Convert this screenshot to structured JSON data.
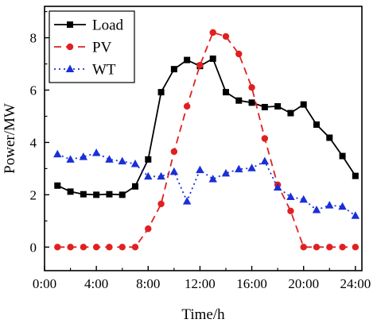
{
  "chart_data": {
    "type": "line",
    "title": "",
    "xlabel": "Time/h",
    "ylabel": "Power/MW",
    "xlim": [
      0,
      24.5
    ],
    "ylim": [
      -0.9,
      9.2
    ],
    "x_ticks": [
      0,
      4,
      8,
      12,
      16,
      20,
      24
    ],
    "x_tick_labels": [
      "0:00",
      "4:00",
      "8:00",
      "12:00",
      "16:00",
      "20:00",
      "24:00"
    ],
    "y_ticks": [
      0,
      2,
      4,
      6,
      8
    ],
    "y_tick_labels": [
      "0",
      "2",
      "4",
      "6",
      "8"
    ],
    "grid": false,
    "legend_position": "top-left",
    "x": [
      1,
      2,
      3,
      4,
      5,
      6,
      7,
      8,
      9,
      10,
      11,
      12,
      13,
      14,
      15,
      16,
      17,
      18,
      19,
      20,
      21,
      22,
      23,
      24
    ],
    "series": [
      {
        "name": "Load",
        "color": "#000000",
        "line_style": "solid",
        "marker": "square",
        "values": [
          2.35,
          2.12,
          2.02,
          2.0,
          2.02,
          2.0,
          2.32,
          3.35,
          5.92,
          6.8,
          7.15,
          6.92,
          7.2,
          5.92,
          5.6,
          5.52,
          5.35,
          5.38,
          5.12,
          5.45,
          4.68,
          4.18,
          3.48,
          2.72
        ]
      },
      {
        "name": "PV",
        "color": "#e02020",
        "line_style": "dashed",
        "marker": "circle",
        "values": [
          0,
          0,
          0,
          0,
          0,
          0,
          0,
          0.7,
          1.65,
          3.65,
          5.38,
          6.95,
          8.2,
          8.05,
          7.38,
          6.1,
          4.15,
          2.38,
          1.38,
          0,
          0,
          0,
          0,
          0
        ]
      },
      {
        "name": "WT",
        "color": "#1a2fd6",
        "line_style": "dotted",
        "marker": "triangle",
        "values": [
          3.55,
          3.35,
          3.45,
          3.6,
          3.35,
          3.28,
          3.18,
          2.7,
          2.7,
          2.88,
          1.75,
          2.95,
          2.6,
          2.82,
          2.98,
          3.02,
          3.28,
          2.28,
          1.92,
          1.82,
          1.42,
          1.6,
          1.55,
          1.2
        ]
      }
    ]
  }
}
